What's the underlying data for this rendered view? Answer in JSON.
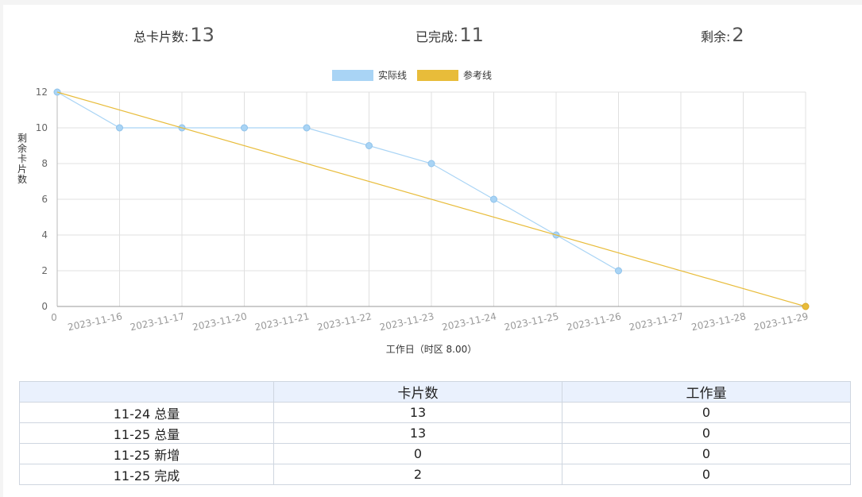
{
  "stats": {
    "total_label": "总卡片数:",
    "total_value": "13",
    "done_label": "已完成:",
    "done_value": "11",
    "remain_label": "剩余:",
    "remain_value": "2"
  },
  "colors": {
    "actual": "#a9d4f5",
    "actual_point": "#a9d4f5",
    "reference": "#e8bc3a",
    "grid": "#e0e0e0"
  },
  "chart_data": {
    "type": "line",
    "categories": [
      "0",
      "2023-11-16",
      "2023-11-17",
      "2023-11-20",
      "2023-11-21",
      "2023-11-22",
      "2023-11-23",
      "2023-11-24",
      "2023-11-25",
      "2023-11-26",
      "2023-11-27",
      "2023-11-28",
      "2023-11-29"
    ],
    "series": [
      {
        "name": "实际线",
        "values": [
          12,
          10,
          10,
          10,
          10,
          9,
          8,
          6,
          4,
          2,
          null,
          null,
          null
        ]
      },
      {
        "name": "参考线",
        "values": [
          12,
          null,
          null,
          null,
          null,
          null,
          null,
          null,
          null,
          null,
          null,
          null,
          0
        ]
      }
    ],
    "ylabel": "剩余卡片数",
    "xlabel": "工作日（时区 8.00）",
    "ylim": [
      0,
      12
    ],
    "yticks": [
      0,
      2,
      4,
      6,
      8,
      10,
      12
    ],
    "grid": true,
    "legend": "top-center"
  },
  "table": {
    "headers": [
      "",
      "卡片数",
      "工作量"
    ],
    "rows": [
      [
        "11-24 总量",
        "13",
        "0"
      ],
      [
        "11-25 总量",
        "13",
        "0"
      ],
      [
        "11-25 新增",
        "0",
        "0"
      ],
      [
        "11-25 完成",
        "2",
        "0"
      ]
    ]
  }
}
